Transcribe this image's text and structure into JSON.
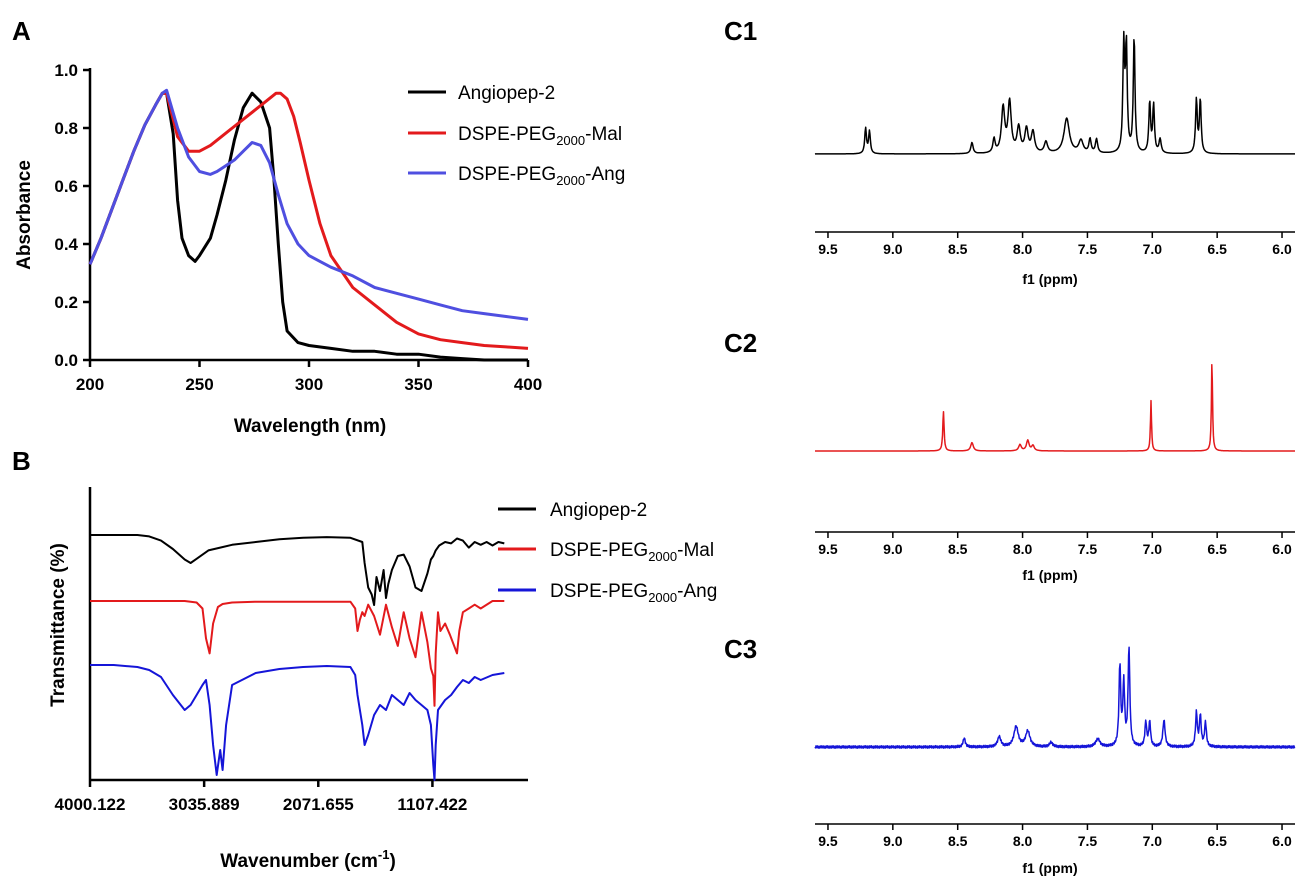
{
  "panels": {
    "A": "A",
    "B": "B",
    "C1": "C1",
    "C2": "C2",
    "C3": "C3"
  },
  "series_labels": {
    "ang": "Angiopep-2",
    "mal_base": "DSPE-PEG",
    "mal_sub": "2000",
    "mal_suffix": "-Mal",
    "dang_base": "DSPE-PEG",
    "dang_sub": "2000",
    "dang_suffix": "-Ang"
  },
  "colors": {
    "ang": "#000000",
    "mal": "#e31a1c",
    "dang_uv": "#4f4fe0",
    "dang_ir": "#1515d8"
  },
  "chart_data": [
    {
      "type": "line",
      "panel": "A",
      "xlabel": "Wavelength (nm)",
      "ylabel": "Absorbance",
      "xlim": [
        200,
        400
      ],
      "ylim": [
        0,
        1.0
      ],
      "xticks": [
        200,
        250,
        300,
        350,
        400
      ],
      "yticks": [
        0.0,
        0.2,
        0.4,
        0.6,
        0.8,
        1.0
      ],
      "ytick_labels": [
        "0.0",
        "0.2",
        "0.4",
        "0.6",
        "0.8",
        "1.0"
      ],
      "legend": "top-right",
      "series": [
        {
          "key": "ang",
          "x": [
            200,
            205,
            210,
            215,
            220,
            225,
            230,
            233,
            235,
            238,
            240,
            242,
            245,
            248,
            250,
            255,
            258,
            262,
            266,
            270,
            274,
            278,
            282,
            284,
            286,
            288,
            290,
            295,
            300,
            310,
            320,
            330,
            340,
            350,
            360,
            370,
            380,
            390,
            400
          ],
          "y": [
            0.33,
            0.42,
            0.52,
            0.62,
            0.72,
            0.81,
            0.88,
            0.92,
            0.92,
            0.78,
            0.55,
            0.42,
            0.36,
            0.34,
            0.36,
            0.42,
            0.5,
            0.62,
            0.76,
            0.87,
            0.92,
            0.89,
            0.8,
            0.62,
            0.4,
            0.2,
            0.1,
            0.06,
            0.05,
            0.04,
            0.03,
            0.03,
            0.02,
            0.02,
            0.01,
            0.005,
            0.0,
            0.0,
            0.0
          ]
        },
        {
          "key": "mal",
          "x": [
            200,
            205,
            210,
            215,
            220,
            225,
            230,
            233,
            235,
            240,
            245,
            250,
            255,
            260,
            265,
            270,
            275,
            280,
            285,
            287,
            290,
            293,
            296,
            300,
            305,
            310,
            320,
            330,
            340,
            350,
            360,
            370,
            380,
            390,
            400
          ],
          "y": [
            0.33,
            0.42,
            0.52,
            0.62,
            0.72,
            0.81,
            0.88,
            0.92,
            0.92,
            0.77,
            0.72,
            0.72,
            0.74,
            0.77,
            0.8,
            0.83,
            0.86,
            0.89,
            0.92,
            0.92,
            0.9,
            0.84,
            0.75,
            0.62,
            0.47,
            0.36,
            0.25,
            0.19,
            0.13,
            0.09,
            0.07,
            0.06,
            0.05,
            0.045,
            0.04
          ]
        },
        {
          "key": "dang",
          "x": [
            200,
            205,
            210,
            215,
            220,
            225,
            230,
            233,
            235,
            240,
            245,
            250,
            255,
            258,
            262,
            266,
            270,
            274,
            278,
            282,
            286,
            290,
            295,
            300,
            305,
            310,
            320,
            330,
            340,
            350,
            360,
            370,
            380,
            390,
            400
          ],
          "y": [
            0.33,
            0.42,
            0.52,
            0.62,
            0.72,
            0.81,
            0.88,
            0.92,
            0.93,
            0.8,
            0.7,
            0.65,
            0.64,
            0.65,
            0.67,
            0.69,
            0.72,
            0.75,
            0.74,
            0.68,
            0.57,
            0.47,
            0.4,
            0.36,
            0.34,
            0.32,
            0.29,
            0.25,
            0.23,
            0.21,
            0.19,
            0.17,
            0.16,
            0.15,
            0.14
          ]
        }
      ]
    },
    {
      "type": "line",
      "panel": "B",
      "xlabel_base": "Wavenumber (cm",
      "xlabel_sup": "-1",
      "xlabel_end": ")",
      "ylabel": "Transmittance (%)",
      "xlim": [
        4000.122,
        300
      ],
      "xticks": [
        4000.122,
        3035.889,
        2071.655,
        1107.422
      ],
      "xtick_labels": [
        "4000.122",
        "3035.889",
        "2071.655",
        "1107.422"
      ],
      "legend": "top-right",
      "series": [
        {
          "key": "ang",
          "x": [
            4000,
            3800,
            3600,
            3500,
            3400,
            3300,
            3200,
            3150,
            3100,
            3000,
            2900,
            2800,
            2600,
            2400,
            2200,
            2000,
            1800,
            1700,
            1680,
            1650,
            1620,
            1600,
            1580,
            1550,
            1520,
            1500,
            1480,
            1450,
            1400,
            1350,
            1300,
            1250,
            1200,
            1150,
            1120,
            1100,
            1080,
            1050,
            1000,
            950,
            900,
            850,
            800,
            750,
            700,
            650,
            600,
            550,
            500
          ],
          "y": [
            100,
            100,
            100,
            98,
            92,
            80,
            65,
            60,
            66,
            78,
            82,
            86,
            90,
            94,
            96,
            97,
            96,
            90,
            60,
            25,
            15,
            0,
            40,
            20,
            50,
            10,
            30,
            50,
            70,
            72,
            55,
            25,
            20,
            45,
            65,
            70,
            78,
            85,
            90,
            88,
            95,
            92,
            82,
            90,
            86,
            90,
            85,
            90,
            88
          ]
        },
        {
          "key": "mal",
          "x": [
            4000,
            3800,
            3600,
            3400,
            3200,
            3100,
            3050,
            3020,
            2990,
            2960,
            2920,
            2880,
            2800,
            2600,
            2400,
            2200,
            2000,
            1800,
            1760,
            1740,
            1720,
            1700,
            1680,
            1650,
            1600,
            1550,
            1500,
            1450,
            1400,
            1350,
            1300,
            1250,
            1200,
            1150,
            1120,
            1100,
            1090,
            1080,
            1060,
            1040,
            1000,
            960,
            900,
            880,
            850,
            800,
            750,
            700,
            600,
            500
          ],
          "y": [
            100,
            100,
            100,
            100,
            100,
            98,
            90,
            50,
            30,
            70,
            92,
            96,
            98,
            99,
            99,
            99,
            99,
            99,
            90,
            60,
            75,
            85,
            80,
            95,
            80,
            55,
            95,
            65,
            40,
            85,
            50,
            25,
            85,
            45,
            10,
            0,
            -40,
            30,
            85,
            60,
            70,
            55,
            30,
            60,
            85,
            90,
            95,
            90,
            100,
            100
          ]
        },
        {
          "key": "dang",
          "x": [
            4000,
            3800,
            3600,
            3500,
            3400,
            3300,
            3200,
            3150,
            3100,
            3050,
            3020,
            2990,
            2960,
            2930,
            2900,
            2880,
            2850,
            2800,
            2600,
            2400,
            2200,
            2000,
            1800,
            1760,
            1740,
            1700,
            1680,
            1650,
            1600,
            1550,
            1500,
            1450,
            1400,
            1350,
            1300,
            1250,
            1200,
            1150,
            1120,
            1100,
            1090,
            1080,
            1060,
            1000,
            950,
            900,
            850,
            800,
            750,
            700,
            600,
            500
          ],
          "y": [
            100,
            100,
            98,
            95,
            88,
            70,
            55,
            60,
            70,
            80,
            85,
            60,
            20,
            -10,
            15,
            -5,
            40,
            80,
            92,
            96,
            98,
            99,
            98,
            90,
            70,
            40,
            20,
            30,
            50,
            60,
            55,
            70,
            65,
            60,
            72,
            65,
            60,
            55,
            40,
            0,
            -15,
            20,
            55,
            65,
            70,
            78,
            85,
            82,
            88,
            85,
            90,
            92
          ]
        }
      ]
    },
    {
      "type": "line",
      "panel": "C1",
      "xlabel": "f1 (ppm)",
      "xlim": [
        9.6,
        5.9
      ],
      "xticks": [
        9.5,
        9.0,
        8.5,
        8.0,
        7.5,
        7.0,
        6.5,
        6.0
      ],
      "xtick_labels": [
        "9.5",
        "9.0",
        "8.5",
        "8.0",
        "7.5",
        "7.0",
        "6.5",
        "6.0"
      ],
      "peaks": [
        {
          "ppm": 9.21,
          "height": 0.18,
          "width": 0.008
        },
        {
          "ppm": 9.18,
          "height": 0.16,
          "width": 0.008
        },
        {
          "ppm": 8.39,
          "height": 0.08,
          "width": 0.01
        },
        {
          "ppm": 8.22,
          "height": 0.1,
          "width": 0.01
        },
        {
          "ppm": 8.15,
          "height": 0.32,
          "width": 0.015
        },
        {
          "ppm": 8.1,
          "height": 0.36,
          "width": 0.015
        },
        {
          "ppm": 8.03,
          "height": 0.18,
          "width": 0.015
        },
        {
          "ppm": 7.97,
          "height": 0.17,
          "width": 0.015
        },
        {
          "ppm": 7.92,
          "height": 0.15,
          "width": 0.015
        },
        {
          "ppm": 7.82,
          "height": 0.08,
          "width": 0.015
        },
        {
          "ppm": 7.66,
          "height": 0.25,
          "width": 0.025
        },
        {
          "ppm": 7.55,
          "height": 0.09,
          "width": 0.02
        },
        {
          "ppm": 7.48,
          "height": 0.1,
          "width": 0.01
        },
        {
          "ppm": 7.43,
          "height": 0.1,
          "width": 0.01
        },
        {
          "ppm": 7.22,
          "height": 0.76,
          "width": 0.008
        },
        {
          "ppm": 7.2,
          "height": 0.74,
          "width": 0.008
        },
        {
          "ppm": 7.14,
          "height": 0.82,
          "width": 0.008
        },
        {
          "ppm": 7.02,
          "height": 0.36,
          "width": 0.008
        },
        {
          "ppm": 6.99,
          "height": 0.34,
          "width": 0.008
        },
        {
          "ppm": 6.94,
          "height": 0.1,
          "width": 0.01
        },
        {
          "ppm": 6.66,
          "height": 0.38,
          "width": 0.008
        },
        {
          "ppm": 6.63,
          "height": 0.38,
          "width": 0.008
        }
      ]
    },
    {
      "type": "line",
      "panel": "C2",
      "xlabel": "f1 (ppm)",
      "xlim": [
        9.6,
        5.9
      ],
      "xticks": [
        9.5,
        9.0,
        8.5,
        8.0,
        7.5,
        7.0,
        6.5,
        6.0
      ],
      "xtick_labels": [
        "9.5",
        "9.0",
        "8.5",
        "8.0",
        "7.5",
        "7.0",
        "6.5",
        "6.0"
      ],
      "peaks": [
        {
          "ppm": 8.61,
          "height": 0.38,
          "width": 0.006
        },
        {
          "ppm": 8.39,
          "height": 0.08,
          "width": 0.012
        },
        {
          "ppm": 8.02,
          "height": 0.06,
          "width": 0.012
        },
        {
          "ppm": 7.96,
          "height": 0.1,
          "width": 0.012
        },
        {
          "ppm": 7.92,
          "height": 0.05,
          "width": 0.012
        },
        {
          "ppm": 7.01,
          "height": 0.48,
          "width": 0.005
        },
        {
          "ppm": 6.54,
          "height": 0.88,
          "width": 0.005
        }
      ]
    },
    {
      "type": "line",
      "panel": "C3",
      "xlabel": "f1 (ppm)",
      "xlim": [
        9.6,
        5.9
      ],
      "xticks": [
        9.5,
        9.0,
        8.5,
        8.0,
        7.5,
        7.0,
        6.5,
        6.0
      ],
      "xtick_labels": [
        "9.5",
        "9.0",
        "8.5",
        "8.0",
        "7.5",
        "7.0",
        "6.5",
        "6.0"
      ],
      "peaks": [
        {
          "ppm": 8.45,
          "height": 0.08,
          "width": 0.01
        },
        {
          "ppm": 8.18,
          "height": 0.09,
          "width": 0.015
        },
        {
          "ppm": 8.05,
          "height": 0.18,
          "width": 0.02
        },
        {
          "ppm": 7.96,
          "height": 0.14,
          "width": 0.02
        },
        {
          "ppm": 7.78,
          "height": 0.04,
          "width": 0.015
        },
        {
          "ppm": 7.42,
          "height": 0.07,
          "width": 0.02
        },
        {
          "ppm": 7.25,
          "height": 0.72,
          "width": 0.008
        },
        {
          "ppm": 7.22,
          "height": 0.56,
          "width": 0.008
        },
        {
          "ppm": 7.18,
          "height": 0.88,
          "width": 0.008
        },
        {
          "ppm": 7.05,
          "height": 0.22,
          "width": 0.008
        },
        {
          "ppm": 7.02,
          "height": 0.22,
          "width": 0.008
        },
        {
          "ppm": 6.91,
          "height": 0.24,
          "width": 0.01
        },
        {
          "ppm": 6.66,
          "height": 0.3,
          "width": 0.008
        },
        {
          "ppm": 6.63,
          "height": 0.28,
          "width": 0.008
        },
        {
          "ppm": 6.59,
          "height": 0.22,
          "width": 0.008
        }
      ]
    }
  ]
}
